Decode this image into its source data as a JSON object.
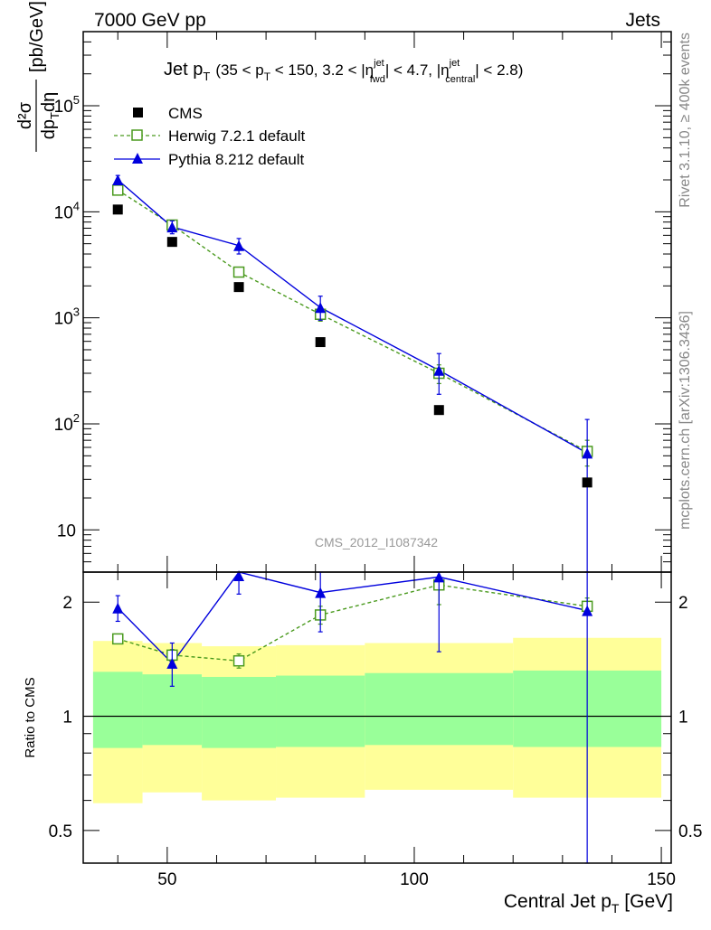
{
  "header": {
    "left": "7000 GeV pp",
    "right": "Jets",
    "side_rivet": "Rivet 3.1.10, ≥ 400k events",
    "side_mcplots": "mcplots.cern.ch [arXiv:1306.3436]",
    "analysis_id": "CMS_2012_I1087342"
  },
  "colors": {
    "herwig": "#4a9a1e",
    "pythia": "#0000dd",
    "cms": "#000000",
    "band_inner": "#99ff99",
    "band_outer": "#ffff99"
  },
  "chart_data": [
    {
      "type": "scatter",
      "title": "Jet p_T (35 < p_T < 150, 3.2 < |η_fwd^jet| < 4.7, |η_central^jet| < 2.8)",
      "title_parts": {
        "lead": "Jet p",
        "sub_T": "T",
        "a": "(35 < p",
        "b": " < 150, 3.2 < |η",
        "sup_jet": "jet",
        "sub_fwd": "fwd",
        "c": "| < 4.7, |η",
        "sub_central": "central",
        "d": "| < 2.8)"
      },
      "ylabel": "d²σ/dp_T dη [pb/GeV]",
      "ylabel_parts": {
        "num": "d²σ",
        "den": "dp",
        "den_sub": "T",
        "den_tail": "dη",
        "unit": "[pb/GeV]"
      },
      "yscale": "log",
      "ylim": [
        4,
        500000
      ],
      "xlim": [
        33,
        152
      ],
      "y_ticks": [
        {
          "value": 10,
          "label": "10",
          "sup": ""
        },
        {
          "value": 100,
          "label": "10",
          "sup": "2"
        },
        {
          "value": 1000,
          "label": "10",
          "sup": "3"
        },
        {
          "value": 10000,
          "label": "10",
          "sup": "4"
        },
        {
          "value": 100000,
          "label": "10",
          "sup": "5"
        }
      ],
      "legend_position": "top-left",
      "series": [
        {
          "name": "CMS",
          "marker": "filled-square",
          "x": [
            40,
            51,
            64.5,
            81,
            105,
            135
          ],
          "y": [
            10500,
            5200,
            1950,
            590,
            135,
            28
          ]
        },
        {
          "name": "Herwig 7.2.1 default",
          "marker": "open-square",
          "line": "dashed",
          "x": [
            40,
            51,
            64.5,
            81,
            105,
            135
          ],
          "y": [
            16000,
            7500,
            2700,
            1080,
            300,
            55
          ],
          "yerr_low": [
            800,
            400,
            200,
            150,
            60,
            15
          ],
          "yerr_high": [
            800,
            400,
            200,
            150,
            60,
            15
          ]
        },
        {
          "name": "Pythia 8.212 default",
          "marker": "filled-triangle",
          "line": "solid",
          "x": [
            40,
            51,
            64.5,
            81,
            105,
            135
          ],
          "y": [
            20000,
            7200,
            4800,
            1250,
            320,
            53
          ],
          "yerr_low": [
            2000,
            1000,
            800,
            300,
            130,
            49
          ],
          "yerr_high": [
            2000,
            1000,
            800,
            350,
            140,
            57
          ]
        }
      ]
    },
    {
      "type": "scatter",
      "ylabel": "Ratio to CMS",
      "xlabel_parts": {
        "lead": "Central Jet p",
        "sub": "T",
        "tail": " [GeV]"
      },
      "yscale": "log",
      "ylim": [
        0.41,
        2.4
      ],
      "xlim": [
        33,
        152
      ],
      "y_ticks": [
        {
          "value": 0.5,
          "label": "0.5"
        },
        {
          "value": 1,
          "label": "1"
        },
        {
          "value": 2,
          "label": "2"
        }
      ],
      "x_ticks": [
        {
          "value": 50,
          "label": "50"
        },
        {
          "value": 100,
          "label": "100"
        },
        {
          "value": 150,
          "label": "150"
        }
      ],
      "bands": [
        {
          "x0": 35,
          "x1": 45,
          "inner": [
            0.825,
            1.31
          ],
          "outer": [
            0.59,
            1.58
          ]
        },
        {
          "x0": 45,
          "x1": 57,
          "inner": [
            0.84,
            1.29
          ],
          "outer": [
            0.63,
            1.56
          ]
        },
        {
          "x0": 57,
          "x1": 72,
          "inner": [
            0.825,
            1.27
          ],
          "outer": [
            0.6,
            1.53
          ]
        },
        {
          "x0": 72,
          "x1": 90,
          "inner": [
            0.83,
            1.28
          ],
          "outer": [
            0.61,
            1.54
          ]
        },
        {
          "x0": 90,
          "x1": 120,
          "inner": [
            0.84,
            1.3
          ],
          "outer": [
            0.64,
            1.56
          ]
        },
        {
          "x0": 120,
          "x1": 150,
          "inner": [
            0.83,
            1.32
          ],
          "outer": [
            0.61,
            1.61
          ]
        }
      ],
      "reference_line": 1,
      "series": [
        {
          "name": "Herwig 7.2.1 default",
          "x": [
            40,
            51,
            64.5,
            81,
            105,
            135
          ],
          "y": [
            1.6,
            1.45,
            1.4,
            1.85,
            2.22,
            1.95
          ],
          "yerr_low": [
            0.03,
            0.05,
            0.06,
            0.1,
            0.25,
            0.1
          ],
          "yerr_high": [
            0.03,
            0.05,
            0.06,
            0.1,
            0.25,
            0.1
          ]
        },
        {
          "name": "Pythia 8.212 default",
          "x": [
            40,
            51,
            64.5,
            81,
            105,
            135
          ],
          "y": [
            1.93,
            1.38,
            2.45,
            2.12,
            2.33,
            1.9
          ],
          "yerr_low": [
            0.15,
            0.18,
            0.35,
            0.45,
            0.85,
            1.5
          ],
          "yerr_high": [
            0.15,
            0.18,
            0.35,
            0.45,
            0.85,
            1.5
          ]
        }
      ]
    }
  ]
}
